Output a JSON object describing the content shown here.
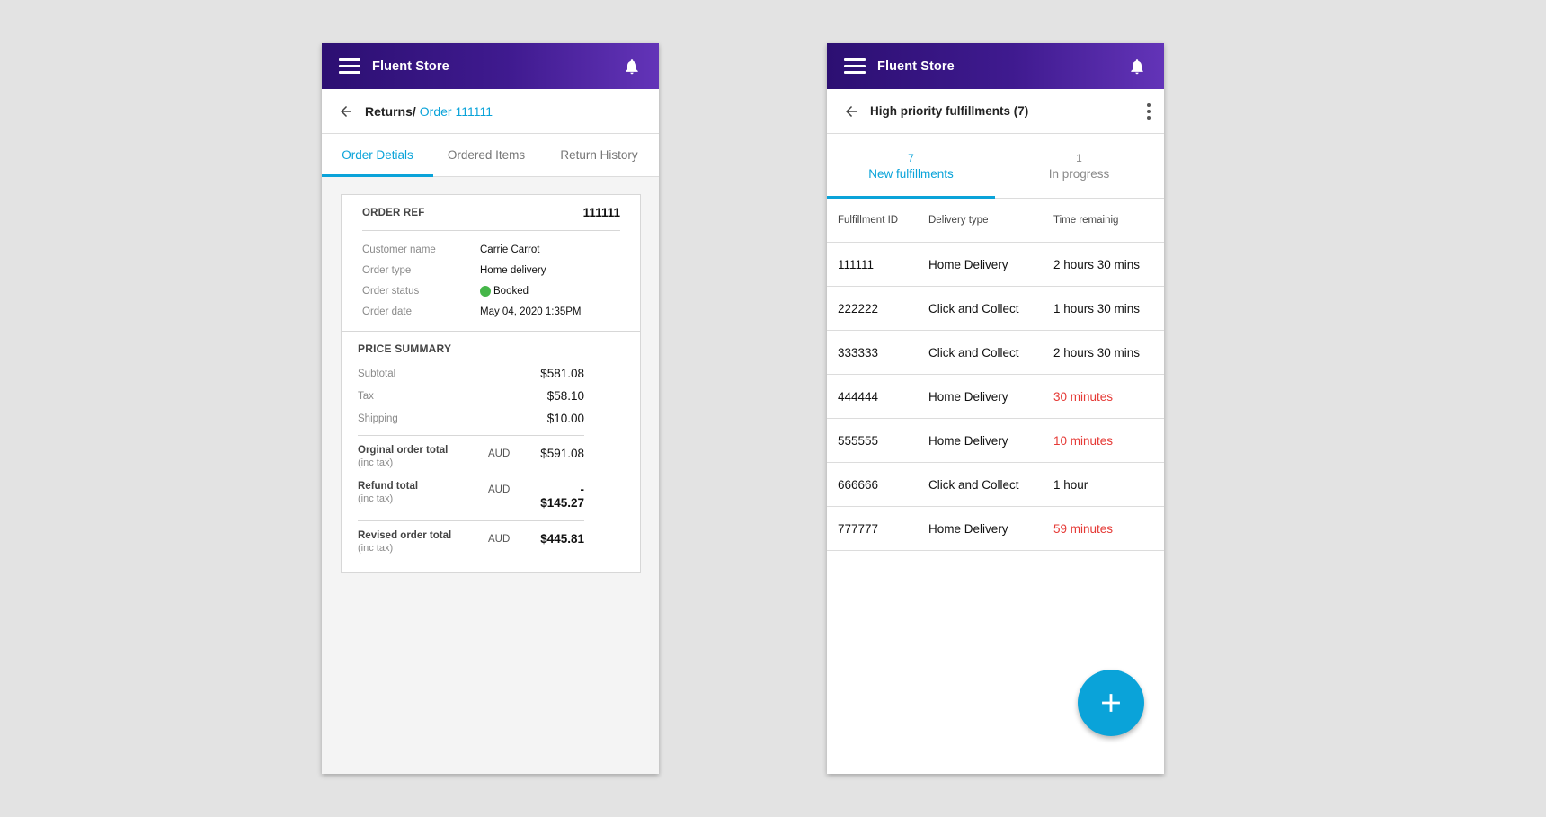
{
  "left_screen": {
    "app_title": "Fluent Store",
    "breadcrumb": {
      "parent": "Returns/",
      "current": "Order 111111"
    },
    "tabs": [
      {
        "label": "Order Detials",
        "active": true
      },
      {
        "label": "Ordered Items",
        "active": false
      },
      {
        "label": "Return History",
        "active": false
      }
    ],
    "order": {
      "ref_label": "ORDER REF",
      "ref_value": "111111",
      "details": [
        {
          "label": "Customer name",
          "value": "Carrie Carrot"
        },
        {
          "label": "Order type",
          "value": "Home delivery"
        },
        {
          "label": "Order status",
          "value": "Booked",
          "status_color": "#45b649"
        },
        {
          "label": "Order date",
          "value": "May 04, 2020 1:35PM"
        }
      ]
    },
    "price_summary": {
      "title": "PRICE SUMMARY",
      "lines": [
        {
          "label": "Subtotal",
          "value": "$581.08"
        },
        {
          "label": "Tax",
          "value": "$58.10"
        },
        {
          "label": "Shipping",
          "value": "$10.00"
        }
      ],
      "original_total": {
        "label": "Orginal order total",
        "sub": "(inc tax)",
        "currency": "AUD",
        "value": "$591.08"
      },
      "refund_total": {
        "label": "Refund total",
        "sub": "(inc tax)",
        "currency": "AUD",
        "value": "- $145.27"
      },
      "revised_total": {
        "label": "Revised order total",
        "sub": "(inc tax)",
        "currency": "AUD",
        "value": "$445.81"
      }
    }
  },
  "right_screen": {
    "app_title": "Fluent Store",
    "page_title": "High priority fulfillments (7)",
    "tabs": [
      {
        "count": "7",
        "label": "New fulfillments",
        "active": true
      },
      {
        "count": "1",
        "label": "In progress",
        "active": false
      }
    ],
    "table": {
      "headers": [
        "Fulfillment ID",
        "Delivery type",
        "Time remainig"
      ],
      "rows": [
        {
          "id": "111111",
          "type": "Home Delivery",
          "time": "2 hours 30 mins",
          "urgent": false
        },
        {
          "id": "222222",
          "type": "Click and Collect",
          "time": "1 hours 30 mins",
          "urgent": false
        },
        {
          "id": "333333",
          "type": "Click and Collect",
          "time": "2 hours 30 mins",
          "urgent": false
        },
        {
          "id": "444444",
          "type": "Home Delivery",
          "time": "30 minutes",
          "urgent": true
        },
        {
          "id": "555555",
          "type": "Home Delivery",
          "time": "10 minutes",
          "urgent": true
        },
        {
          "id": "666666",
          "type": "Click and Collect",
          "time": "1 hour",
          "urgent": false
        },
        {
          "id": "777777",
          "type": "Home Delivery",
          "time": "59 minutes",
          "urgent": true
        }
      ]
    }
  },
  "colors": {
    "accent": "#0aa3d9",
    "appbar_start": "#2c0f72",
    "appbar_end": "#6334b8",
    "urgent": "#e53935",
    "status_booked": "#45b649"
  },
  "icons": [
    "menu-icon",
    "bell-icon",
    "back-arrow-icon",
    "more-vert-icon",
    "add-icon"
  ]
}
